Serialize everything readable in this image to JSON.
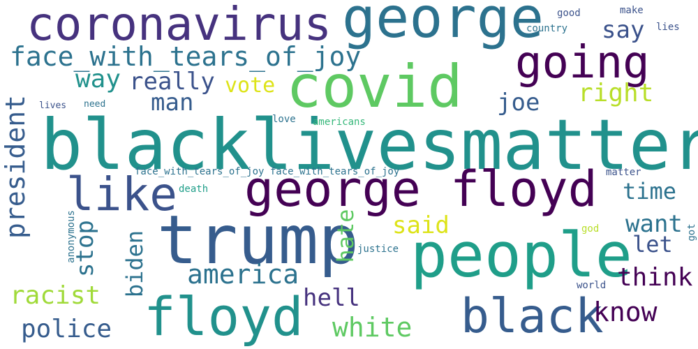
{
  "words": {
    "blacklivesmatter": "blacklivesmatter",
    "covid": "covid",
    "trump": "trump",
    "george_floyd": "george floyd",
    "people": "people",
    "george": "george",
    "coronavirus": "coronavirus",
    "going": "going",
    "floyd": "floyd",
    "black": "black",
    "like": "like",
    "face_with_tears_of_joy": "face_with_tears_of_joy",
    "face_with_tears_of_joy_pair": "face_with_tears_of_joy face_with_tears_of_joy",
    "white": "white",
    "police": "police",
    "racist": "racist",
    "america": "america",
    "know": "know",
    "think": "think",
    "hell": "hell",
    "say": "say",
    "way": "way",
    "really": "really",
    "vote": "vote",
    "man": "man",
    "right": "right",
    "joe": "joe",
    "president": "president",
    "stop": "stop",
    "biden": "biden",
    "hate": "hate",
    "said": "said",
    "want": "want",
    "let": "let",
    "time": "time",
    "good": "good",
    "make": "make",
    "country": "country",
    "lies": "lies",
    "lives": "lives",
    "need": "need",
    "love": "love",
    "americans": "americans",
    "matter": "matter",
    "death": "death",
    "anonymous": "anonymous",
    "justice": "justice",
    "god": "god",
    "got": "got",
    "world": "world"
  }
}
